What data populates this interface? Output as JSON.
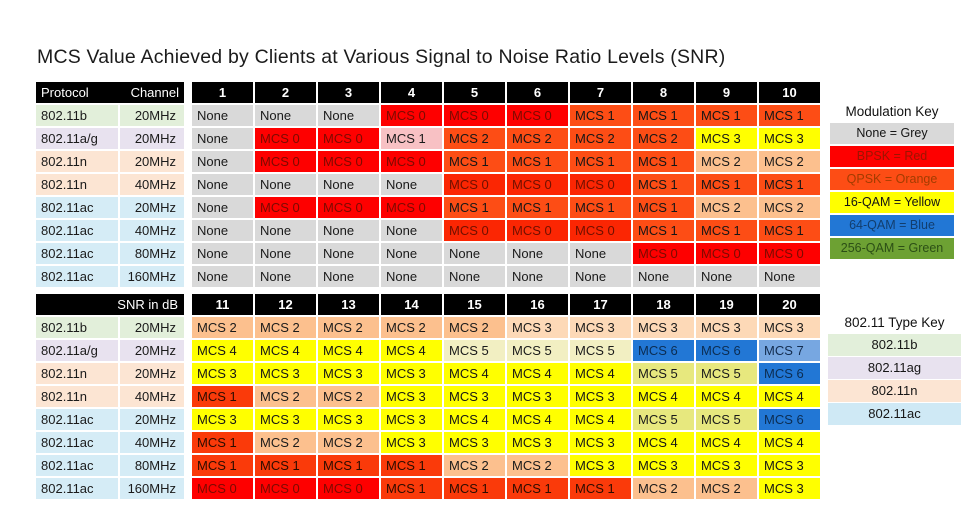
{
  "title": "MCS Value Achieved by Clients at Various Signal to Noise Ratio Levels (SNR)",
  "palette": {
    "grey": {
      "bg": "#d9d9d9",
      "fg": "#1a1a1a"
    },
    "red": {
      "bg": "#fe0000",
      "fg": "#7c0a00"
    },
    "redOrange": {
      "bg": "#fb2603",
      "fg": "#701000"
    },
    "deepOrange": {
      "bg": "#fa3a0a",
      "fg": "#2c0c00"
    },
    "orange": {
      "bg": "#fd4d15",
      "fg": "#161616"
    },
    "pink": {
      "bg": "#f8c1c4",
      "fg": "#1a1a1a"
    },
    "peach": {
      "bg": "#fcc08e",
      "fg": "#1a1a1a"
    },
    "lightPeach": {
      "bg": "#fdd9b7",
      "fg": "#1a1a1a"
    },
    "yellow": {
      "bg": "#ffff00",
      "fg": "#161616"
    },
    "cream": {
      "bg": "#f2efc2",
      "fg": "#1a1a1a"
    },
    "yellowGreen": {
      "bg": "#e7e87e",
      "fg": "#1a1a1a"
    },
    "blue": {
      "bg": "#2277d5",
      "fg": "#0c2d52"
    },
    "lightBlue": {
      "bg": "#77a7e1",
      "fg": "#132c4e"
    },
    "green": {
      "bg": "#6da133",
      "fg": "#2c4f16"
    }
  },
  "chart_data": {
    "type": "heatmap",
    "title": "MCS Value Achieved by Clients at Various Signal to Noise Ratio Levels (SNR)",
    "header": {
      "protocol": "Protocol",
      "channel": "Channel",
      "snr_label": "SNR in dB"
    },
    "columns": {
      "top": [
        "1",
        "2",
        "3",
        "4",
        "5",
        "6",
        "7",
        "8",
        "9",
        "10"
      ],
      "bottom": [
        "11",
        "12",
        "13",
        "14",
        "15",
        "16",
        "17",
        "18",
        "19",
        "20"
      ]
    },
    "rows": [
      {
        "protocol": "802.11b",
        "channel": "20MHz",
        "tint": "#e2efda"
      },
      {
        "protocol": "802.11a/g",
        "channel": "20MHz",
        "tint": "#e8e2ef"
      },
      {
        "protocol": "802.11n",
        "channel": "20MHz",
        "tint": "#fce5d3"
      },
      {
        "protocol": "802.11n",
        "channel": "40MHz",
        "tint": "#fce5d3"
      },
      {
        "protocol": "802.11ac",
        "channel": "20MHz",
        "tint": "#d5ecf6"
      },
      {
        "protocol": "802.11ac",
        "channel": "40MHz",
        "tint": "#d5ecf6"
      },
      {
        "protocol": "802.11ac",
        "channel": "80MHz",
        "tint": "#d5ecf6"
      },
      {
        "protocol": "802.11ac",
        "channel": "160MHz",
        "tint": "#d5ecf6"
      }
    ],
    "cells": {
      "top": [
        [
          [
            "None",
            "grey"
          ],
          [
            "None",
            "grey"
          ],
          [
            "None",
            "grey"
          ],
          [
            "MCS 0",
            "red"
          ],
          [
            "MCS 0",
            "red"
          ],
          [
            "MCS 0",
            "red"
          ],
          [
            "MCS 1",
            "orange"
          ],
          [
            "MCS 1",
            "orange"
          ],
          [
            "MCS 1",
            "orange"
          ],
          [
            "MCS 1",
            "orange"
          ]
        ],
        [
          [
            "None",
            "grey"
          ],
          [
            "MCS 0",
            "red"
          ],
          [
            "MCS 0",
            "red"
          ],
          [
            "MCS 1",
            "pink"
          ],
          [
            "MCS 2",
            "orange"
          ],
          [
            "MCS 2",
            "orange"
          ],
          [
            "MCS 2",
            "orange"
          ],
          [
            "MCS 2",
            "orange"
          ],
          [
            "MCS 3",
            "yellow"
          ],
          [
            "MCS 3",
            "yellow"
          ]
        ],
        [
          [
            "None",
            "grey"
          ],
          [
            "MCS 0",
            "red"
          ],
          [
            "MCS 0",
            "red"
          ],
          [
            "MCS 0",
            "red"
          ],
          [
            "MCS 1",
            "orange"
          ],
          [
            "MCS 1",
            "orange"
          ],
          [
            "MCS 1",
            "orange"
          ],
          [
            "MCS 1",
            "orange"
          ],
          [
            "MCS 2",
            "peach"
          ],
          [
            "MCS 2",
            "peach"
          ]
        ],
        [
          [
            "None",
            "grey"
          ],
          [
            "None",
            "grey"
          ],
          [
            "None",
            "grey"
          ],
          [
            "None",
            "grey"
          ],
          [
            "MCS 0",
            "redOrange"
          ],
          [
            "MCS 0",
            "redOrange"
          ],
          [
            "MCS 0",
            "redOrange"
          ],
          [
            "MCS 1",
            "orange"
          ],
          [
            "MCS 1",
            "orange"
          ],
          [
            "MCS 1",
            "orange"
          ]
        ],
        [
          [
            "None",
            "grey"
          ],
          [
            "MCS 0",
            "red"
          ],
          [
            "MCS 0",
            "red"
          ],
          [
            "MCS 0",
            "red"
          ],
          [
            "MCS 1",
            "orange"
          ],
          [
            "MCS 1",
            "orange"
          ],
          [
            "MCS 1",
            "orange"
          ],
          [
            "MCS 1",
            "orange"
          ],
          [
            "MCS 2",
            "peach"
          ],
          [
            "MCS 2",
            "peach"
          ]
        ],
        [
          [
            "None",
            "grey"
          ],
          [
            "None",
            "grey"
          ],
          [
            "None",
            "grey"
          ],
          [
            "None",
            "grey"
          ],
          [
            "MCS 0",
            "redOrange"
          ],
          [
            "MCS 0",
            "redOrange"
          ],
          [
            "MCS 0",
            "redOrange"
          ],
          [
            "MCS 1",
            "orange"
          ],
          [
            "MCS 1",
            "orange"
          ],
          [
            "MCS 1",
            "orange"
          ]
        ],
        [
          [
            "None",
            "grey"
          ],
          [
            "None",
            "grey"
          ],
          [
            "None",
            "grey"
          ],
          [
            "None",
            "grey"
          ],
          [
            "None",
            "grey"
          ],
          [
            "None",
            "grey"
          ],
          [
            "None",
            "grey"
          ],
          [
            "MCS 0",
            "red"
          ],
          [
            "MCS 0",
            "red"
          ],
          [
            "MCS 0",
            "red"
          ]
        ],
        [
          [
            "None",
            "grey"
          ],
          [
            "None",
            "grey"
          ],
          [
            "None",
            "grey"
          ],
          [
            "None",
            "grey"
          ],
          [
            "None",
            "grey"
          ],
          [
            "None",
            "grey"
          ],
          [
            "None",
            "grey"
          ],
          [
            "None",
            "grey"
          ],
          [
            "None",
            "grey"
          ],
          [
            "None",
            "grey"
          ]
        ]
      ],
      "bottom": [
        [
          [
            "MCS 2",
            "peach"
          ],
          [
            "MCS 2",
            "peach"
          ],
          [
            "MCS 2",
            "peach"
          ],
          [
            "MCS 2",
            "peach"
          ],
          [
            "MCS 2",
            "peach"
          ],
          [
            "MCS 3",
            "lightPeach"
          ],
          [
            "MCS 3",
            "lightPeach"
          ],
          [
            "MCS 3",
            "lightPeach"
          ],
          [
            "MCS 3",
            "lightPeach"
          ],
          [
            "MCS 3",
            "lightPeach"
          ]
        ],
        [
          [
            "MCS 4",
            "yellow"
          ],
          [
            "MCS 4",
            "yellow"
          ],
          [
            "MCS 4",
            "yellow"
          ],
          [
            "MCS 4",
            "yellow"
          ],
          [
            "MCS 5",
            "cream"
          ],
          [
            "MCS 5",
            "cream"
          ],
          [
            "MCS 5",
            "cream"
          ],
          [
            "MCS 6",
            "blue"
          ],
          [
            "MCS 6",
            "blue"
          ],
          [
            "MCS 7",
            "lightBlue"
          ]
        ],
        [
          [
            "MCS 3",
            "yellow"
          ],
          [
            "MCS 3",
            "yellow"
          ],
          [
            "MCS 3",
            "yellow"
          ],
          [
            "MCS 3",
            "yellow"
          ],
          [
            "MCS 4",
            "yellow"
          ],
          [
            "MCS 4",
            "yellow"
          ],
          [
            "MCS 4",
            "yellow"
          ],
          [
            "MCS 5",
            "yellowGreen"
          ],
          [
            "MCS 5",
            "yellowGreen"
          ],
          [
            "MCS 6",
            "blue"
          ]
        ],
        [
          [
            "MCS 1",
            "deepOrange"
          ],
          [
            "MCS 2",
            "peach"
          ],
          [
            "MCS 2",
            "peach"
          ],
          [
            "MCS 3",
            "yellow"
          ],
          [
            "MCS 3",
            "yellow"
          ],
          [
            "MCS 3",
            "yellow"
          ],
          [
            "MCS 3",
            "yellow"
          ],
          [
            "MCS 4",
            "yellow"
          ],
          [
            "MCS 4",
            "yellow"
          ],
          [
            "MCS 4",
            "yellow"
          ]
        ],
        [
          [
            "MCS 3",
            "yellow"
          ],
          [
            "MCS 3",
            "yellow"
          ],
          [
            "MCS 3",
            "yellow"
          ],
          [
            "MCS 3",
            "yellow"
          ],
          [
            "MCS 4",
            "yellow"
          ],
          [
            "MCS 4",
            "yellow"
          ],
          [
            "MCS 4",
            "yellow"
          ],
          [
            "MCS 5",
            "yellowGreen"
          ],
          [
            "MCS 5",
            "yellowGreen"
          ],
          [
            "MCS 6",
            "blue"
          ]
        ],
        [
          [
            "MCS 1",
            "deepOrange"
          ],
          [
            "MCS 2",
            "peach"
          ],
          [
            "MCS 2",
            "peach"
          ],
          [
            "MCS 3",
            "yellow"
          ],
          [
            "MCS 3",
            "yellow"
          ],
          [
            "MCS 3",
            "yellow"
          ],
          [
            "MCS 3",
            "yellow"
          ],
          [
            "MCS 4",
            "yellow"
          ],
          [
            "MCS 4",
            "yellow"
          ],
          [
            "MCS 4",
            "yellow"
          ]
        ],
        [
          [
            "MCS 1",
            "deepOrange"
          ],
          [
            "MCS 1",
            "deepOrange"
          ],
          [
            "MCS 1",
            "deepOrange"
          ],
          [
            "MCS 1",
            "deepOrange"
          ],
          [
            "MCS 2",
            "peach"
          ],
          [
            "MCS 2",
            "peach"
          ],
          [
            "MCS 3",
            "yellow"
          ],
          [
            "MCS 3",
            "yellow"
          ],
          [
            "MCS 3",
            "yellow"
          ],
          [
            "MCS 3",
            "yellow"
          ]
        ],
        [
          [
            "MCS 0",
            "red"
          ],
          [
            "MCS 0",
            "red"
          ],
          [
            "MCS 0",
            "red"
          ],
          [
            "MCS 1",
            "deepOrange"
          ],
          [
            "MCS 1",
            "deepOrange"
          ],
          [
            "MCS 1",
            "deepOrange"
          ],
          [
            "MCS 1",
            "deepOrange"
          ],
          [
            "MCS 2",
            "peach"
          ],
          [
            "MCS 2",
            "peach"
          ],
          [
            "MCS 3",
            "yellow"
          ]
        ]
      ]
    }
  },
  "modulation_key": {
    "title": "Modulation Key",
    "items": [
      {
        "label": "None = Grey",
        "bg": "#d9d9d9",
        "fg": "#141414"
      },
      {
        "label": "BPSK = Red",
        "bg": "#fe0000",
        "fg": "#9c1400"
      },
      {
        "label": "QPSK = Orange",
        "bg": "#fd4d15",
        "fg": "#a33c00"
      },
      {
        "label": "16-QAM = Yellow",
        "bg": "#ffff00",
        "fg": "#141414"
      },
      {
        "label": "64-QAM = Blue",
        "bg": "#2277d5",
        "fg": "#123e6e"
      },
      {
        "label": "256-QAM = Green",
        "bg": "#6da133",
        "fg": "#2c4f16"
      }
    ]
  },
  "type_key": {
    "title": "802.11 Type Key",
    "items": [
      {
        "label": "802.11b",
        "bg": "#e2efda",
        "fg": "#161616"
      },
      {
        "label": "802.11ag",
        "bg": "#e8e2ef",
        "fg": "#161616"
      },
      {
        "label": "802.11n",
        "bg": "#fce5d3",
        "fg": "#161616"
      },
      {
        "label": "802.11ac",
        "bg": "#cfe9f5",
        "fg": "#161616"
      }
    ]
  }
}
